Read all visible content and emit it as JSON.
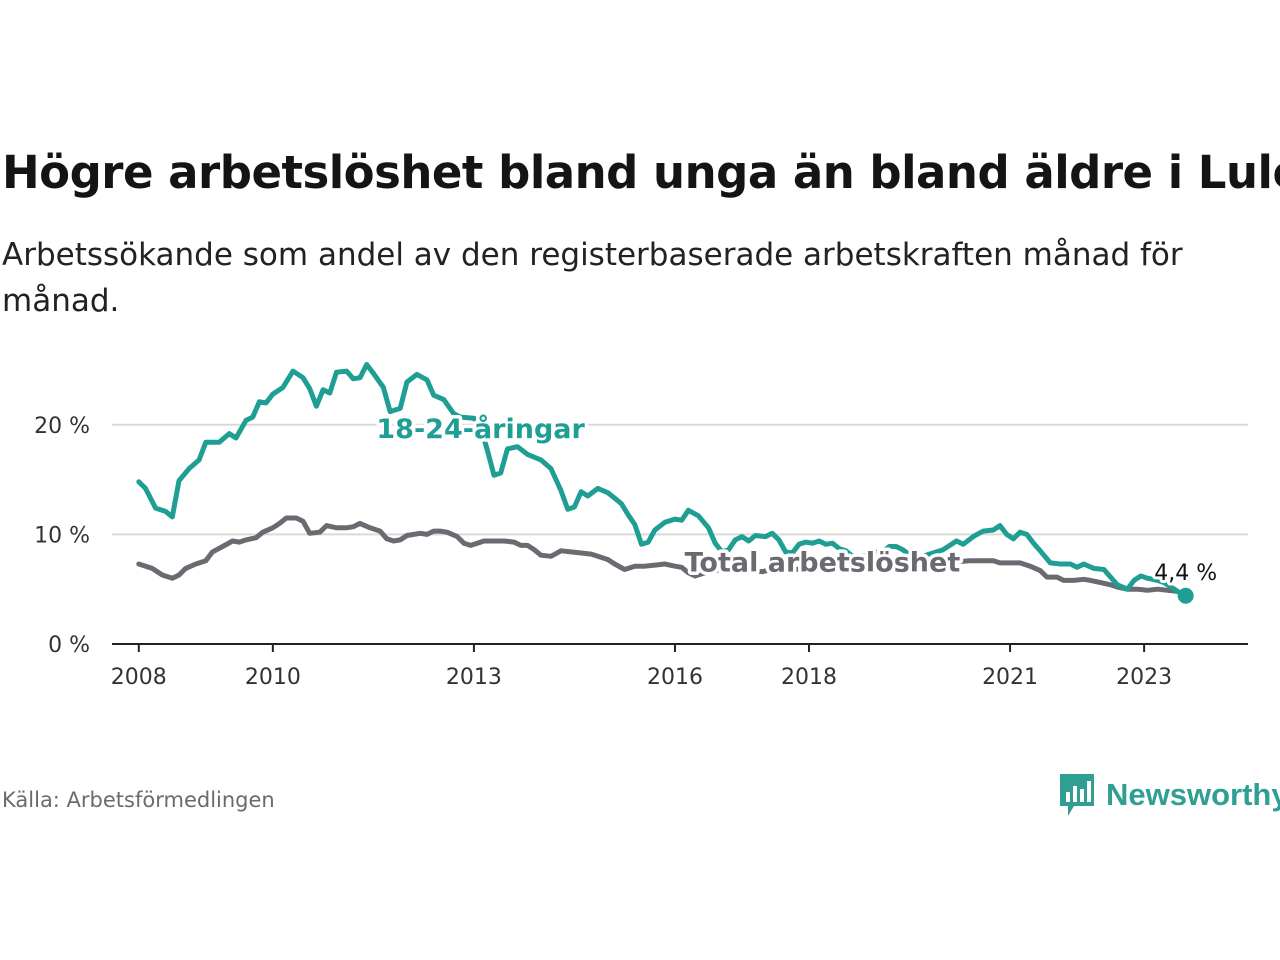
{
  "title": "Högre arbetslöshet bland unga än bland äldre i Luleå",
  "subtitle": "Arbetssökande som andel av den registerbaserade arbetskraften månad för månad.",
  "source": "Källa: Arbetsförmedlingen",
  "brand": {
    "name": "Newsworthy",
    "icon": "newsworthy-logo-icon",
    "color": "#2f9e93"
  },
  "chart_data": {
    "type": "line",
    "title": "Högre arbetslöshet bland unga än bland äldre i Luleå",
    "xlabel": "",
    "ylabel": "",
    "xlim": [
      2007.6,
      2024.55
    ],
    "ylim": [
      0,
      25
    ],
    "grid": true,
    "x_ticks": [
      {
        "value": 2008,
        "label": "2008"
      },
      {
        "value": 2010,
        "label": "2010"
      },
      {
        "value": 2013,
        "label": "2013"
      },
      {
        "value": 2016,
        "label": "2016"
      },
      {
        "value": 2018,
        "label": "2018"
      },
      {
        "value": 2021,
        "label": "2021"
      },
      {
        "value": 2023,
        "label": "2023"
      }
    ],
    "y_ticks": [
      {
        "value": 0,
        "label": "0 %"
      },
      {
        "value": 10,
        "label": "10 %"
      },
      {
        "value": 20,
        "label": "20 %"
      }
    ],
    "series": [
      {
        "name": "18-24-åringar",
        "label": "18-24-åringar",
        "label_at": [
          2013.1,
          18.8
        ],
        "color": "#1f9e94",
        "points": [
          [
            2008.0,
            14.8
          ],
          [
            2008.1,
            14.2
          ],
          [
            2008.25,
            12.4
          ],
          [
            2008.4,
            12.1
          ],
          [
            2008.5,
            11.6
          ],
          [
            2008.6,
            14.9
          ],
          [
            2008.75,
            16.0
          ],
          [
            2008.9,
            16.8
          ],
          [
            2009.0,
            18.4
          ],
          [
            2009.2,
            18.4
          ],
          [
            2009.35,
            19.2
          ],
          [
            2009.45,
            18.8
          ],
          [
            2009.6,
            20.4
          ],
          [
            2009.7,
            20.7
          ],
          [
            2009.8,
            22.1
          ],
          [
            2009.9,
            22.0
          ],
          [
            2010.0,
            22.8
          ],
          [
            2010.15,
            23.4
          ],
          [
            2010.3,
            24.9
          ],
          [
            2010.45,
            24.3
          ],
          [
            2010.55,
            23.3
          ],
          [
            2010.65,
            21.7
          ],
          [
            2010.75,
            23.2
          ],
          [
            2010.85,
            22.9
          ],
          [
            2010.95,
            24.8
          ],
          [
            2011.1,
            24.9
          ],
          [
            2011.2,
            24.2
          ],
          [
            2011.3,
            24.3
          ],
          [
            2011.4,
            25.5
          ],
          [
            2011.5,
            24.7
          ],
          [
            2011.65,
            23.4
          ],
          [
            2011.75,
            21.2
          ],
          [
            2011.9,
            21.5
          ],
          [
            2012.0,
            23.9
          ],
          [
            2012.15,
            24.6
          ],
          [
            2012.3,
            24.1
          ],
          [
            2012.4,
            22.7
          ],
          [
            2012.55,
            22.3
          ],
          [
            2012.7,
            21.0
          ],
          [
            2012.8,
            20.7
          ],
          [
            2013.0,
            20.6
          ],
          [
            2013.1,
            19.8
          ],
          [
            2013.2,
            17.7
          ],
          [
            2013.3,
            15.4
          ],
          [
            2013.4,
            15.6
          ],
          [
            2013.5,
            17.8
          ],
          [
            2013.65,
            18.0
          ],
          [
            2013.8,
            17.3
          ],
          [
            2014.0,
            16.8
          ],
          [
            2014.15,
            16.0
          ],
          [
            2014.3,
            14.0
          ],
          [
            2014.4,
            12.3
          ],
          [
            2014.5,
            12.5
          ],
          [
            2014.6,
            13.9
          ],
          [
            2014.7,
            13.5
          ],
          [
            2014.85,
            14.2
          ],
          [
            2015.0,
            13.8
          ],
          [
            2015.1,
            13.3
          ],
          [
            2015.2,
            12.8
          ],
          [
            2015.3,
            11.8
          ],
          [
            2015.4,
            10.9
          ],
          [
            2015.5,
            9.1
          ],
          [
            2015.6,
            9.3
          ],
          [
            2015.7,
            10.4
          ],
          [
            2015.85,
            11.1
          ],
          [
            2016.0,
            11.4
          ],
          [
            2016.1,
            11.3
          ],
          [
            2016.2,
            12.2
          ],
          [
            2016.35,
            11.7
          ],
          [
            2016.5,
            10.6
          ],
          [
            2016.6,
            9.2
          ],
          [
            2016.7,
            8.4
          ],
          [
            2016.8,
            8.6
          ],
          [
            2016.9,
            9.5
          ],
          [
            2017.0,
            9.8
          ],
          [
            2017.1,
            9.4
          ],
          [
            2017.2,
            9.9
          ],
          [
            2017.35,
            9.8
          ],
          [
            2017.45,
            10.1
          ],
          [
            2017.55,
            9.5
          ],
          [
            2017.65,
            8.4
          ],
          [
            2017.75,
            8.3
          ],
          [
            2017.85,
            9.1
          ],
          [
            2017.95,
            9.3
          ],
          [
            2018.05,
            9.2
          ],
          [
            2018.15,
            9.4
          ],
          [
            2018.25,
            9.1
          ],
          [
            2018.35,
            9.2
          ],
          [
            2018.45,
            8.7
          ],
          [
            2018.55,
            8.5
          ],
          [
            2018.65,
            8.0
          ],
          [
            2018.75,
            7.8
          ],
          [
            2018.85,
            8.1
          ],
          [
            2018.95,
            8.4
          ],
          [
            2019.1,
            8.4
          ],
          [
            2019.2,
            8.9
          ],
          [
            2019.3,
            8.9
          ],
          [
            2019.4,
            8.6
          ],
          [
            2019.55,
            7.9
          ],
          [
            2019.7,
            8.0
          ],
          [
            2019.85,
            8.3
          ],
          [
            2020.0,
            8.6
          ],
          [
            2020.1,
            9.0
          ],
          [
            2020.2,
            9.4
          ],
          [
            2020.3,
            9.1
          ],
          [
            2020.45,
            9.8
          ],
          [
            2020.6,
            10.3
          ],
          [
            2020.75,
            10.4
          ],
          [
            2020.85,
            10.8
          ],
          [
            2020.95,
            10.0
          ],
          [
            2021.05,
            9.6
          ],
          [
            2021.15,
            10.2
          ],
          [
            2021.25,
            10.0
          ],
          [
            2021.35,
            9.2
          ],
          [
            2021.45,
            8.5
          ],
          [
            2021.6,
            7.4
          ],
          [
            2021.75,
            7.3
          ],
          [
            2021.9,
            7.3
          ],
          [
            2022.0,
            7.0
          ],
          [
            2022.1,
            7.3
          ],
          [
            2022.25,
            6.9
          ],
          [
            2022.4,
            6.8
          ],
          [
            2022.5,
            6.1
          ],
          [
            2022.6,
            5.4
          ],
          [
            2022.75,
            5.0
          ],
          [
            2022.85,
            5.8
          ],
          [
            2022.95,
            6.2
          ],
          [
            2023.05,
            6.0
          ],
          [
            2023.2,
            5.8
          ],
          [
            2023.3,
            5.6
          ],
          [
            2023.45,
            5.0
          ],
          [
            2023.55,
            4.6
          ],
          [
            2023.62,
            4.4
          ]
        ]
      },
      {
        "name": "Total arbetslöshet",
        "label": "Total arbetslöshet",
        "label_at": [
          2018.2,
          6.6
        ],
        "color": "#6c6a70",
        "points": [
          [
            2008.0,
            7.3
          ],
          [
            2008.2,
            6.9
          ],
          [
            2008.35,
            6.3
          ],
          [
            2008.5,
            6.0
          ],
          [
            2008.6,
            6.3
          ],
          [
            2008.7,
            6.9
          ],
          [
            2008.85,
            7.3
          ],
          [
            2009.0,
            7.6
          ],
          [
            2009.1,
            8.4
          ],
          [
            2009.25,
            8.9
          ],
          [
            2009.4,
            9.4
          ],
          [
            2009.5,
            9.3
          ],
          [
            2009.6,
            9.5
          ],
          [
            2009.75,
            9.7
          ],
          [
            2009.85,
            10.2
          ],
          [
            2010.0,
            10.6
          ],
          [
            2010.1,
            11.0
          ],
          [
            2010.2,
            11.5
          ],
          [
            2010.35,
            11.5
          ],
          [
            2010.45,
            11.2
          ],
          [
            2010.55,
            10.1
          ],
          [
            2010.7,
            10.2
          ],
          [
            2010.8,
            10.8
          ],
          [
            2010.95,
            10.6
          ],
          [
            2011.1,
            10.6
          ],
          [
            2011.2,
            10.7
          ],
          [
            2011.3,
            11.0
          ],
          [
            2011.45,
            10.6
          ],
          [
            2011.6,
            10.3
          ],
          [
            2011.7,
            9.6
          ],
          [
            2011.8,
            9.4
          ],
          [
            2011.9,
            9.5
          ],
          [
            2012.0,
            9.9
          ],
          [
            2012.2,
            10.1
          ],
          [
            2012.3,
            10.0
          ],
          [
            2012.4,
            10.3
          ],
          [
            2012.5,
            10.3
          ],
          [
            2012.6,
            10.2
          ],
          [
            2012.75,
            9.8
          ],
          [
            2012.85,
            9.2
          ],
          [
            2012.95,
            9.0
          ],
          [
            2013.05,
            9.2
          ],
          [
            2013.15,
            9.4
          ],
          [
            2013.3,
            9.4
          ],
          [
            2013.45,
            9.4
          ],
          [
            2013.6,
            9.3
          ],
          [
            2013.7,
            9.0
          ],
          [
            2013.8,
            9.0
          ],
          [
            2013.9,
            8.6
          ],
          [
            2014.0,
            8.1
          ],
          [
            2014.15,
            8.0
          ],
          [
            2014.3,
            8.5
          ],
          [
            2014.45,
            8.4
          ],
          [
            2014.6,
            8.3
          ],
          [
            2014.75,
            8.2
          ],
          [
            2014.9,
            7.9
          ],
          [
            2015.0,
            7.7
          ],
          [
            2015.1,
            7.3
          ],
          [
            2015.25,
            6.8
          ],
          [
            2015.4,
            7.1
          ],
          [
            2015.55,
            7.1
          ],
          [
            2015.7,
            7.2
          ],
          [
            2015.85,
            7.3
          ],
          [
            2016.0,
            7.1
          ],
          [
            2016.1,
            7.0
          ],
          [
            2016.2,
            6.5
          ],
          [
            2016.3,
            6.2
          ],
          [
            2016.45,
            6.5
          ],
          [
            2016.6,
            6.7
          ],
          [
            2016.75,
            6.9
          ],
          [
            2016.9,
            7.0
          ],
          [
            2017.0,
            7.1
          ],
          [
            2017.15,
            6.7
          ],
          [
            2017.3,
            6.6
          ],
          [
            2017.45,
            6.8
          ],
          [
            2017.6,
            6.9
          ],
          [
            2017.8,
            6.8
          ],
          [
            2018.0,
            6.9
          ],
          [
            2018.2,
            6.9
          ],
          [
            2018.4,
            6.9
          ],
          [
            2018.6,
            6.9
          ],
          [
            2018.8,
            7.0
          ],
          [
            2019.0,
            7.1
          ],
          [
            2019.2,
            7.1
          ],
          [
            2019.4,
            7.2
          ],
          [
            2019.6,
            7.2
          ],
          [
            2019.8,
            7.4
          ],
          [
            2020.0,
            7.5
          ],
          [
            2020.2,
            7.5
          ],
          [
            2020.4,
            7.6
          ],
          [
            2020.6,
            7.6
          ],
          [
            2020.75,
            7.6
          ],
          [
            2020.85,
            7.4
          ],
          [
            2021.0,
            7.4
          ],
          [
            2021.15,
            7.4
          ],
          [
            2021.3,
            7.1
          ],
          [
            2021.45,
            6.7
          ],
          [
            2021.55,
            6.1
          ],
          [
            2021.7,
            6.1
          ],
          [
            2021.8,
            5.8
          ],
          [
            2021.95,
            5.8
          ],
          [
            2022.1,
            5.9
          ],
          [
            2022.2,
            5.8
          ],
          [
            2022.35,
            5.6
          ],
          [
            2022.5,
            5.4
          ],
          [
            2022.6,
            5.2
          ],
          [
            2022.75,
            5.0
          ],
          [
            2022.9,
            5.0
          ],
          [
            2023.05,
            4.9
          ],
          [
            2023.2,
            5.0
          ],
          [
            2023.35,
            4.9
          ],
          [
            2023.5,
            4.8
          ],
          [
            2023.62,
            4.4
          ]
        ]
      }
    ],
    "end_marker": {
      "series": "18-24-åringar",
      "x": 2023.62,
      "y": 4.4,
      "label": "4,4 %"
    }
  }
}
